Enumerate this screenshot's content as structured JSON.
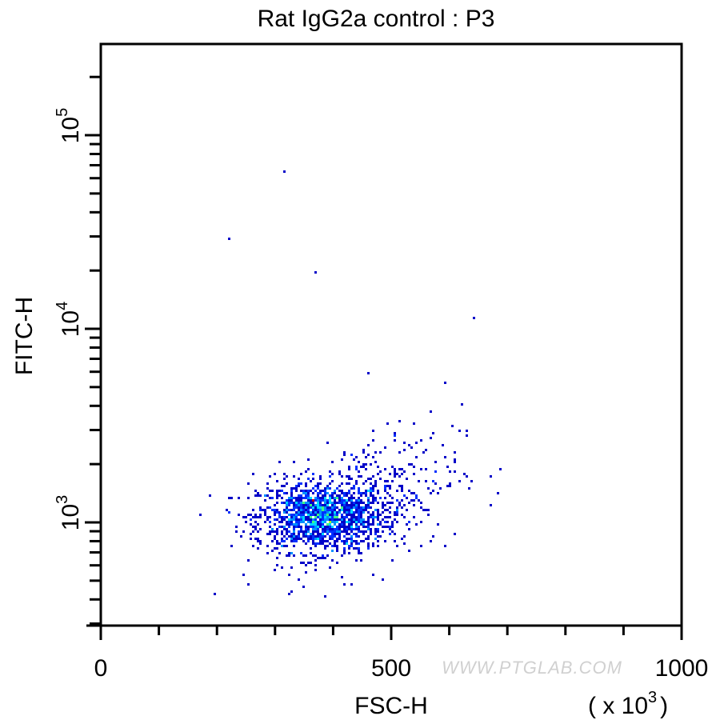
{
  "chart_data": {
    "type": "scatter",
    "title": "Rat IgG2a control : P3",
    "xlabel": "FSC-H",
    "x_multiplier_label": {
      "base": "( x 10",
      "exp": "3",
      "close": ")"
    },
    "ylabel": "FITC-H",
    "xlim": [
      0,
      1000
    ],
    "ylim": [
      293,
      296000
    ],
    "xscale": "linear",
    "yscale": "log",
    "x_ticks": [
      {
        "value": 0,
        "label": "0"
      },
      {
        "value": 500,
        "label": "500"
      },
      {
        "value": 1000,
        "label": "1000"
      }
    ],
    "x_minor_tick_step": 100,
    "y_ticks": [
      {
        "value": 1000,
        "base": "10",
        "exp": "3"
      },
      {
        "value": 10000,
        "base": "10",
        "exp": "4"
      },
      {
        "value": 100000,
        "base": "10",
        "exp": "5"
      }
    ],
    "grid": false,
    "density_colormap": [
      "#0000c8",
      "#0030ff",
      "#0090ff",
      "#00d8ff",
      "#40ff80",
      "#a0ff20",
      "#ffff00",
      "#c00000"
    ],
    "populations": [
      {
        "name": "main cluster",
        "count": 1400,
        "x_mean": 380,
        "x_sd": 55,
        "log10_y_mean": 3.03,
        "log10_y_sd": 0.09
      },
      {
        "name": "upper-right tail",
        "count": 380,
        "x_mean": 460,
        "x_sd": 80,
        "log10_y_mean": 3.12,
        "log10_y_sd": 0.17,
        "log10_y_slope_per_x": 0.0009
      }
    ],
    "outliers": [
      {
        "x": 315,
        "y": 65000
      },
      {
        "x": 222,
        "y": 29500
      },
      {
        "x": 370,
        "y": 19500
      },
      {
        "x": 643,
        "y": 11300
      },
      {
        "x": 460,
        "y": 5900
      },
      {
        "x": 594,
        "y": 5250
      },
      {
        "x": 671,
        "y": 1210
      },
      {
        "x": 387,
        "y": 416
      }
    ]
  },
  "watermark": "WWW.PTGLAB.COM"
}
